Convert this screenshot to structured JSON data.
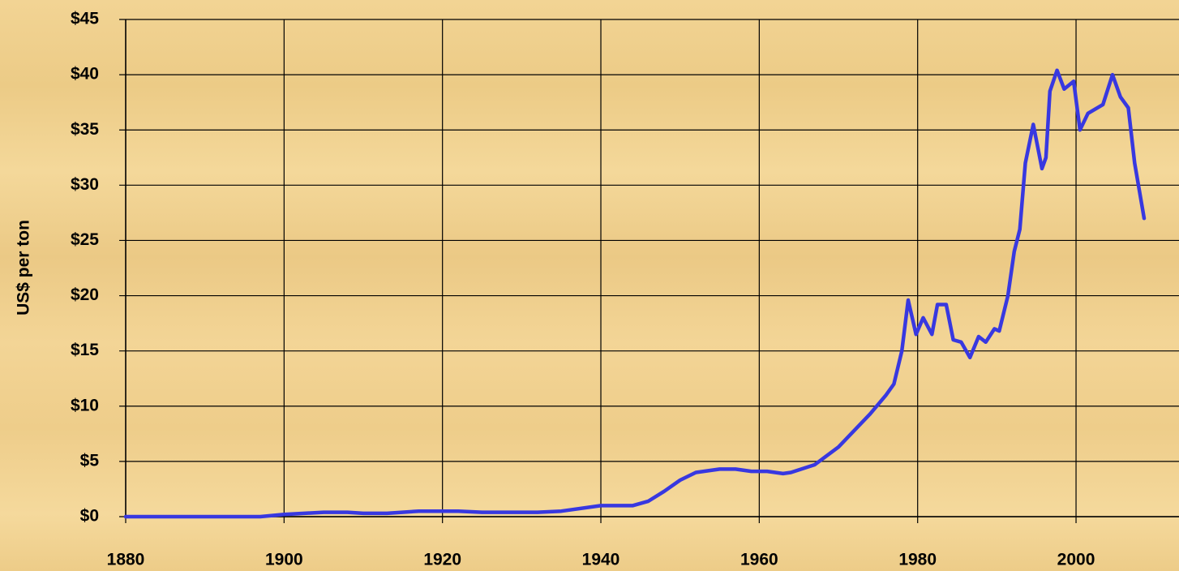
{
  "chart_data": {
    "type": "line",
    "ylabel": "US$ per ton",
    "color": "#3838e0",
    "grid": true,
    "x": [
      1880,
      1897,
      1900,
      1905,
      1908,
      1910,
      1913,
      1917,
      1922,
      1925,
      1932,
      1935,
      1940,
      1944,
      1946,
      1948,
      1950,
      1952,
      1955,
      1957,
      1959,
      1961,
      1963,
      1964,
      1967,
      1970,
      1972,
      1974,
      1976,
      1977,
      1978,
      1978.8,
      1979.8,
      1980.7,
      1981.8,
      1982.5,
      1983.6,
      1984.5,
      1985.5,
      1986.6,
      1987.7,
      1988.6,
      1989.7,
      1990.3,
      1991.4,
      1992.2,
      1992.9,
      1993.6,
      1994.6,
      1995.7,
      1996.2,
      1996.7,
      1997.6,
      1998.5,
      1999.7,
      2000.5,
      2001.5,
      2003.4,
      2004.6,
      2005.6,
      2006.6,
      2007.4,
      2008.6
    ],
    "values": [
      0,
      0,
      0.2,
      0.4,
      0.4,
      0.3,
      0.3,
      0.5,
      0.5,
      0.4,
      0.4,
      0.5,
      1.0,
      1.0,
      1.4,
      2.3,
      3.3,
      4.0,
      4.3,
      4.3,
      4.1,
      4.1,
      3.9,
      4.0,
      4.7,
      6.3,
      7.8,
      9.3,
      11.0,
      12.0,
      15.0,
      19.6,
      16.5,
      18.0,
      16.5,
      19.2,
      19.2,
      16.0,
      15.8,
      14.4,
      16.3,
      15.8,
      17.0,
      16.8,
      20.0,
      24.0,
      26.0,
      32.0,
      35.5,
      31.5,
      32.5,
      38.5,
      40.4,
      38.7,
      39.4,
      35.0,
      36.5,
      37.3,
      40.0,
      38.0,
      37.0,
      32.0,
      27.0
    ],
    "xlim": [
      1880,
      2013
    ],
    "xticks": [
      1880,
      1900,
      1920,
      1940,
      1960,
      1980,
      2000
    ],
    "ylim": [
      0,
      45
    ],
    "yticks": [
      {
        "value": 0,
        "label": "$0"
      },
      {
        "value": 5,
        "label": "$5"
      },
      {
        "value": 10,
        "label": "$10"
      },
      {
        "value": 15,
        "label": "$15"
      },
      {
        "value": 20,
        "label": "$20"
      },
      {
        "value": 25,
        "label": "$25"
      },
      {
        "value": 30,
        "label": "$30"
      },
      {
        "value": 35,
        "label": "$35"
      },
      {
        "value": 40,
        "label": "$40"
      },
      {
        "value": 45,
        "label": "$45"
      }
    ]
  }
}
